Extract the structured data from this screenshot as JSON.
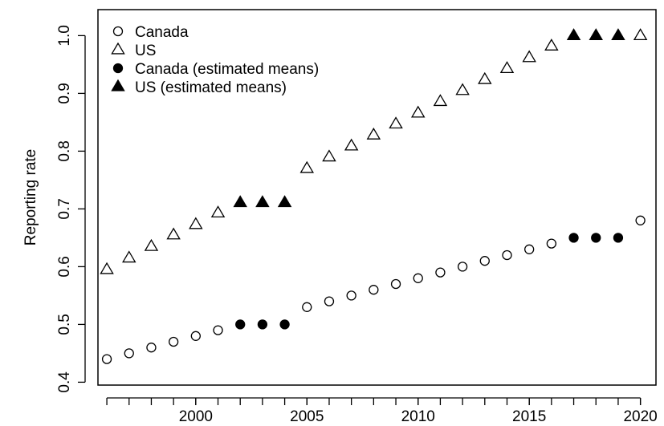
{
  "chart_data": {
    "type": "scatter",
    "title": "",
    "xlabel": "",
    "ylabel": "Reporting rate",
    "xlim": [
      1995.6,
      2020.7
    ],
    "ylim": [
      0.395,
      1.045
    ],
    "xticks": [
      2000,
      2005,
      2010,
      2015,
      2020
    ],
    "yticks": [
      0.4,
      0.5,
      0.6,
      0.7,
      0.8,
      0.9,
      1.0
    ],
    "xtick_labels": [
      "2000",
      "2005",
      "2010",
      "2015",
      "2020"
    ],
    "ytick_labels": [
      "0.4",
      "0.5",
      "0.6",
      "0.7",
      "0.8",
      "0.9",
      "1.0"
    ],
    "grid": false,
    "legend_position": "top-left",
    "series": [
      {
        "name": "Canada",
        "marker": "open-circle",
        "x": [
          1996,
          1997,
          1998,
          1999,
          2000,
          2001,
          2005,
          2006,
          2007,
          2008,
          2009,
          2010,
          2011,
          2012,
          2013,
          2014,
          2015,
          2016,
          2020
        ],
        "y": [
          0.44,
          0.45,
          0.46,
          0.47,
          0.48,
          0.49,
          0.53,
          0.54,
          0.55,
          0.56,
          0.57,
          0.58,
          0.59,
          0.6,
          0.61,
          0.62,
          0.63,
          0.64,
          0.68
        ]
      },
      {
        "name": "US",
        "marker": "open-triangle",
        "x": [
          1996,
          1997,
          1998,
          1999,
          2000,
          2001,
          2005,
          2006,
          2007,
          2008,
          2009,
          2010,
          2011,
          2012,
          2013,
          2014,
          2015,
          2016,
          2020
        ],
        "y": [
          0.595,
          0.615,
          0.635,
          0.655,
          0.673,
          0.693,
          0.77,
          0.79,
          0.809,
          0.828,
          0.847,
          0.866,
          0.886,
          0.905,
          0.924,
          0.943,
          0.962,
          0.982,
          1.0
        ]
      },
      {
        "name": "Canada (estimated means)",
        "marker": "filled-circle",
        "x": [
          2002,
          2003,
          2004,
          2017,
          2018,
          2019
        ],
        "y": [
          0.5,
          0.5,
          0.5,
          0.65,
          0.65,
          0.65
        ]
      },
      {
        "name": "US (estimated means)",
        "marker": "filled-triangle",
        "x": [
          2002,
          2003,
          2004,
          2017,
          2018,
          2019
        ],
        "y": [
          0.711,
          0.711,
          0.711,
          1.0,
          1.0,
          1.0
        ]
      }
    ]
  }
}
